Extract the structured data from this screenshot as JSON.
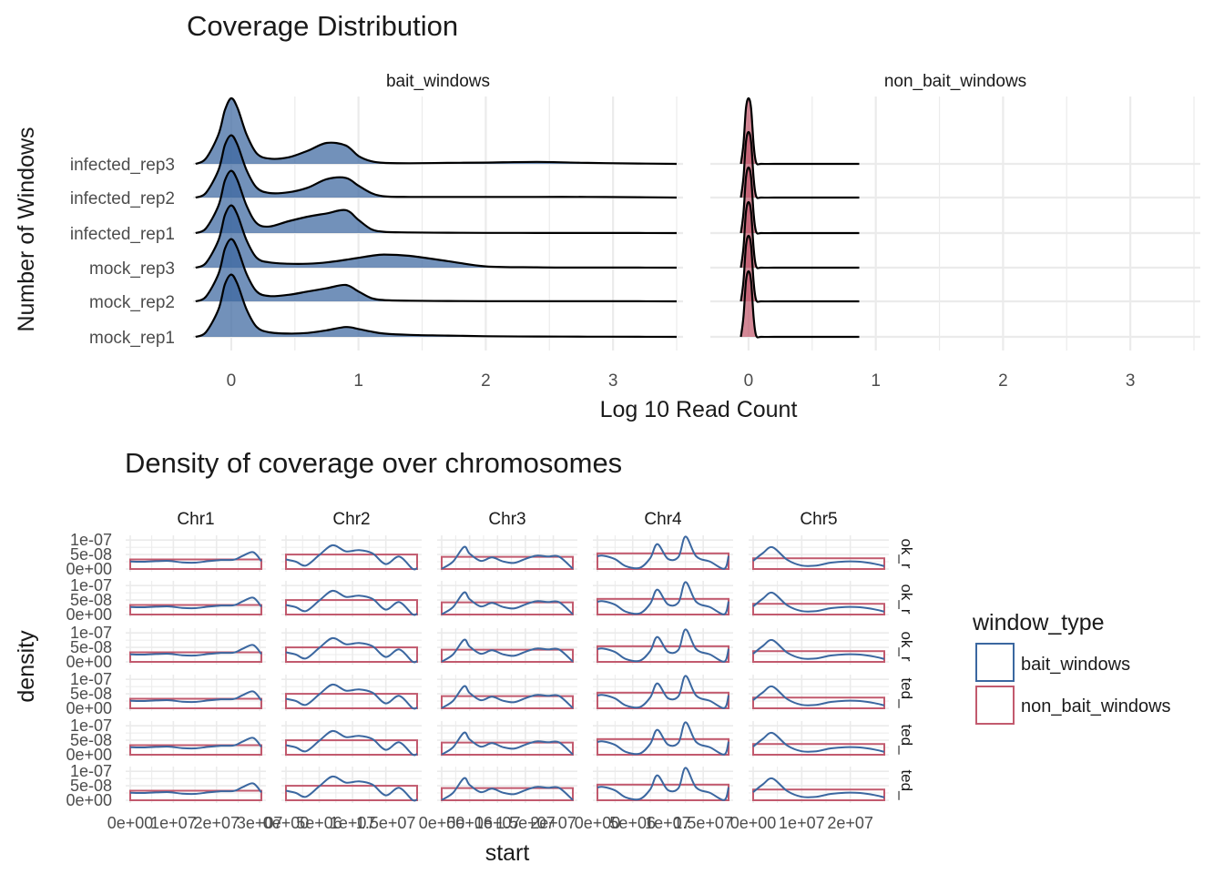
{
  "colors": {
    "bait": "#3B67A0",
    "non_bait": "#C25A6E",
    "grid": "#EBEBEB",
    "ridge_line": "#000000"
  },
  "chart_data": [
    {
      "type": "ridgeline",
      "title": "Coverage Distribution",
      "xlabel": "Log 10 Read Count",
      "ylabel": "Number of Windows",
      "facets": [
        "bait_windows",
        "non_bait_windows"
      ],
      "samples": [
        "infected_rep3",
        "infected_rep2",
        "infected_rep1",
        "mock_rep3",
        "mock_rep2",
        "mock_rep1"
      ],
      "xlim": [
        -0.3,
        3.55
      ],
      "x_ticks": [
        "0",
        "1",
        "2",
        "3"
      ],
      "x_tick_values": [
        0,
        1,
        2,
        3
      ],
      "grid": true,
      "ridges": [
        {
          "facet": "bait_windows",
          "sample": "infected_rep3",
          "x": [
            -0.28,
            -0.2,
            -0.1,
            -0.05,
            0,
            0.05,
            0.12,
            0.2,
            0.3,
            0.45,
            0.6,
            0.75,
            0.9,
            1.0,
            1.1,
            1.2,
            1.4,
            1.7,
            2.0,
            2.4,
            2.8,
            3.2,
            3.5
          ],
          "y": [
            0,
            0.08,
            0.45,
            0.82,
            1.0,
            0.85,
            0.45,
            0.16,
            0.08,
            0.1,
            0.2,
            0.32,
            0.28,
            0.12,
            0.04,
            0.015,
            0.01,
            0.015,
            0.02,
            0.03,
            0.015,
            0.005,
            0
          ]
        },
        {
          "facet": "bait_windows",
          "sample": "infected_rep2",
          "x": [
            -0.28,
            -0.2,
            -0.1,
            -0.05,
            0,
            0.05,
            0.12,
            0.2,
            0.3,
            0.45,
            0.6,
            0.75,
            0.9,
            1.0,
            1.1,
            1.2,
            1.4,
            1.7,
            2.0,
            2.4,
            2.8,
            3.2,
            3.5
          ],
          "y": [
            0,
            0.07,
            0.42,
            0.8,
            0.95,
            0.8,
            0.42,
            0.15,
            0.07,
            0.08,
            0.15,
            0.28,
            0.3,
            0.18,
            0.07,
            0.02,
            0.01,
            0.01,
            0.01,
            0.01,
            0.01,
            0.005,
            0
          ]
        },
        {
          "facet": "bait_windows",
          "sample": "infected_rep1",
          "x": [
            -0.28,
            -0.2,
            -0.1,
            -0.05,
            0,
            0.05,
            0.12,
            0.2,
            0.3,
            0.45,
            0.6,
            0.75,
            0.9,
            1.0,
            1.1,
            1.2,
            1.4,
            1.7,
            2.0,
            2.4,
            2.8,
            3.2,
            3.5
          ],
          "y": [
            0,
            0.07,
            0.42,
            0.8,
            0.95,
            0.8,
            0.42,
            0.15,
            0.1,
            0.18,
            0.25,
            0.3,
            0.35,
            0.2,
            0.06,
            0.02,
            0.01,
            0.005,
            0.003,
            0.002,
            0.002,
            0.001,
            0
          ]
        },
        {
          "facet": "bait_windows",
          "sample": "mock_rep3",
          "x": [
            -0.28,
            -0.2,
            -0.1,
            -0.05,
            0,
            0.05,
            0.12,
            0.2,
            0.3,
            0.45,
            0.6,
            0.75,
            0.9,
            1.0,
            1.1,
            1.2,
            1.4,
            1.7,
            2.0,
            2.4,
            2.8,
            3.2,
            3.5
          ],
          "y": [
            0,
            0.07,
            0.42,
            0.8,
            0.95,
            0.8,
            0.42,
            0.15,
            0.08,
            0.06,
            0.06,
            0.08,
            0.12,
            0.15,
            0.18,
            0.2,
            0.18,
            0.1,
            0.02,
            0.005,
            0.002,
            0.001,
            0
          ]
        },
        {
          "facet": "bait_windows",
          "sample": "mock_rep2",
          "x": [
            -0.28,
            -0.2,
            -0.1,
            -0.05,
            0,
            0.05,
            0.12,
            0.2,
            0.3,
            0.45,
            0.6,
            0.75,
            0.9,
            1.0,
            1.1,
            1.2,
            1.4,
            1.7,
            2.0,
            2.4,
            2.8,
            3.2,
            3.5
          ],
          "y": [
            0,
            0.07,
            0.42,
            0.8,
            0.95,
            0.8,
            0.42,
            0.15,
            0.08,
            0.1,
            0.15,
            0.2,
            0.25,
            0.15,
            0.05,
            0.02,
            0.01,
            0.005,
            0.003,
            0.002,
            0.002,
            0.001,
            0
          ]
        },
        {
          "facet": "bait_windows",
          "sample": "mock_rep1",
          "x": [
            -0.28,
            -0.2,
            -0.1,
            -0.05,
            0,
            0.05,
            0.12,
            0.2,
            0.3,
            0.45,
            0.6,
            0.75,
            0.9,
            1.0,
            1.1,
            1.2,
            1.4,
            1.7,
            2.0,
            2.4,
            2.8,
            3.2,
            3.5
          ],
          "y": [
            0,
            0.07,
            0.42,
            0.8,
            0.95,
            0.8,
            0.42,
            0.15,
            0.07,
            0.05,
            0.06,
            0.1,
            0.15,
            0.12,
            0.08,
            0.05,
            0.03,
            0.02,
            0.01,
            0.005,
            0.003,
            0.001,
            0
          ]
        },
        {
          "facet": "non_bait_windows",
          "sample": "infected_rep3",
          "x": [
            -0.06,
            -0.04,
            -0.02,
            0,
            0.02,
            0.04,
            0.06,
            0.1,
            0.2,
            0.4,
            0.6,
            0.87
          ],
          "y": [
            0,
            0.3,
            0.85,
            1.0,
            0.85,
            0.3,
            0.02,
            0,
            0,
            0,
            0,
            0
          ]
        },
        {
          "facet": "non_bait_windows",
          "sample": "infected_rep2",
          "x": [
            -0.06,
            -0.04,
            -0.02,
            0,
            0.02,
            0.04,
            0.06,
            0.1,
            0.2,
            0.4,
            0.6,
            0.87
          ],
          "y": [
            0,
            0.3,
            0.85,
            1.0,
            0.85,
            0.3,
            0.02,
            0,
            0,
            0,
            0,
            0
          ]
        },
        {
          "facet": "non_bait_windows",
          "sample": "infected_rep1",
          "x": [
            -0.06,
            -0.04,
            -0.02,
            0,
            0.02,
            0.04,
            0.06,
            0.1,
            0.2,
            0.4,
            0.6,
            0.87
          ],
          "y": [
            0,
            0.3,
            0.85,
            1.0,
            0.85,
            0.3,
            0.02,
            0,
            0,
            0,
            0,
            0
          ]
        },
        {
          "facet": "non_bait_windows",
          "sample": "mock_rep3",
          "x": [
            -0.06,
            -0.04,
            -0.02,
            0,
            0.02,
            0.04,
            0.06,
            0.1,
            0.2,
            0.4,
            0.6,
            0.87
          ],
          "y": [
            0,
            0.3,
            0.85,
            1.0,
            0.85,
            0.3,
            0.02,
            0,
            0,
            0,
            0,
            0
          ]
        },
        {
          "facet": "non_bait_windows",
          "sample": "mock_rep2",
          "x": [
            -0.06,
            -0.04,
            -0.02,
            0,
            0.02,
            0.04,
            0.06,
            0.1,
            0.2,
            0.4,
            0.6,
            0.87
          ],
          "y": [
            0,
            0.3,
            0.85,
            1.0,
            0.85,
            0.3,
            0.02,
            0,
            0,
            0,
            0,
            0
          ]
        },
        {
          "facet": "non_bait_windows",
          "sample": "mock_rep1",
          "x": [
            -0.06,
            -0.04,
            -0.02,
            0,
            0.02,
            0.04,
            0.06,
            0.1,
            0.2,
            0.4,
            0.6,
            0.87
          ],
          "y": [
            0,
            0.3,
            0.85,
            1.0,
            0.85,
            0.3,
            0.02,
            0,
            0,
            0,
            0,
            0
          ]
        }
      ]
    },
    {
      "type": "line",
      "title": "Density of coverage over chromosomes",
      "xlabel": "start",
      "ylabel": "density",
      "columns": [
        "Chr1",
        "Chr2",
        "Chr3",
        "Chr4",
        "Chr5"
      ],
      "row_strips": [
        "ok_r",
        "ok_r",
        "ok_r",
        "ted_",
        "ted_",
        "ted_"
      ],
      "y_ticks": [
        "1e-07",
        "5e-08",
        "0e+00"
      ],
      "y_tick_values": [
        1e-07,
        5e-08,
        0
      ],
      "ylim": [
        0,
        1.1e-07
      ],
      "x_ticks": [
        [
          "0e+00",
          "1e+07",
          "2e+07",
          "3e+07"
        ],
        [
          "0e+00",
          "5e+06",
          "1e+07",
          "1.5e+07"
        ],
        [
          "0e+00",
          "5e+06",
          "1e+07",
          "1.5e+07",
          "2e+07"
        ],
        [
          "0e+00",
          "5e+06",
          "1e+07",
          "1.5e+07"
        ],
        [
          "0e+00",
          "1e+07",
          "2e+07"
        ]
      ],
      "x_tick_values": [
        [
          0,
          10000000,
          20000000,
          30000000
        ],
        [
          0,
          5000000,
          10000000,
          15000000
        ],
        [
          0,
          5000000,
          10000000,
          15000000,
          20000000
        ],
        [
          0,
          5000000,
          10000000,
          15000000
        ],
        [
          0,
          10000000,
          20000000
        ]
      ],
      "xlims": [
        [
          0,
          30400000
        ],
        [
          0,
          19700000
        ],
        [
          0,
          23500000
        ],
        [
          0,
          18600000
        ],
        [
          0,
          27000000
        ]
      ],
      "legend": {
        "title": "window_type",
        "position": "right",
        "entries": [
          "bait_windows",
          "non_bait_windows"
        ]
      },
      "bait_windows": [
        {
          "chromosome": "Chr1",
          "x": [
            0,
            3000000,
            6000000,
            9000000,
            12000000,
            15000000,
            18000000,
            21000000,
            24000000,
            26000000,
            28500000,
            30400000
          ],
          "y": [
            2.6e-08,
            2.5e-08,
            2.7e-08,
            2.8e-08,
            2.3e-08,
            2.2e-08,
            2.7e-08,
            3.1e-08,
            3.2e-08,
            4.5e-08,
            5.8e-08,
            2.7e-08
          ]
        },
        {
          "chromosome": "Chr2",
          "x": [
            0,
            1500000,
            3000000,
            5000000,
            7000000,
            9000000,
            11000000,
            13000000,
            15000000,
            17000000,
            19000000,
            19700000
          ],
          "y": [
            3.3e-08,
            2.5e-08,
            1.2e-08,
            4.8e-08,
            8.2e-08,
            6.1e-08,
            6.5e-08,
            5.4e-08,
            1.7e-08,
            4.3e-08,
            1e-09,
            3e-09
          ]
        },
        {
          "chromosome": "Chr3",
          "x": [
            0,
            2000000,
            4000000,
            5000000,
            7000000,
            9000000,
            11000000,
            13000000,
            15000000,
            17000000,
            19000000,
            21000000,
            23500000
          ],
          "y": [
            1e-09,
            2.5e-08,
            7.6e-08,
            5.3e-08,
            2.8e-08,
            4e-08,
            2.6e-08,
            2.1e-08,
            3.5e-08,
            4.6e-08,
            4.3e-08,
            4.3e-08,
            1e-09
          ]
        },
        {
          "chromosome": "Chr4",
          "x": [
            0,
            800000,
            2500000,
            4000000,
            6000000,
            7500000,
            8500000,
            10000000,
            11500000,
            12500000,
            14000000,
            16000000,
            18000000,
            18600000
          ],
          "y": [
            4.4e-08,
            4.6e-08,
            3.4e-08,
            1e-08,
            4e-09,
            3.8e-08,
            8.6e-08,
            3.5e-08,
            4.2e-08,
            1.12e-07,
            4.4e-08,
            2.5e-08,
            1e-09,
            4.5e-08
          ]
        },
        {
          "chromosome": "Chr5",
          "x": [
            0,
            2000000,
            4000000,
            7000000,
            10000000,
            13000000,
            16000000,
            19000000,
            22000000,
            25000000,
            27000000
          ],
          "y": [
            2.8e-08,
            5.5e-08,
            7.5e-08,
            3.2e-08,
            1.2e-08,
            1.2e-08,
            2.2e-08,
            2.6e-08,
            2.5e-08,
            1.8e-08,
            1e-08
          ]
        }
      ],
      "non_bait_windows": [
        {
          "chromosome": "Chr1",
          "level": 3.3e-08
        },
        {
          "chromosome": "Chr2",
          "level": 5e-08
        },
        {
          "chromosome": "Chr3",
          "level": 4.2e-08
        },
        {
          "chromosome": "Chr4",
          "level": 5.4e-08
        },
        {
          "chromosome": "Chr5",
          "level": 3.7e-08
        }
      ]
    }
  ]
}
